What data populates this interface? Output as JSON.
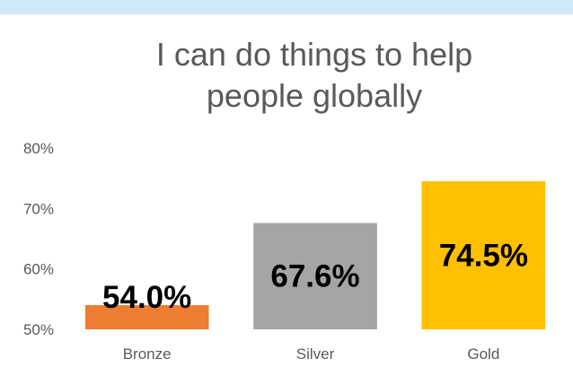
{
  "chart_data": {
    "type": "bar",
    "title_lines": [
      "I can do things to help",
      "people globally"
    ],
    "categories": [
      "Bronze",
      "Silver",
      "Gold"
    ],
    "values": [
      54.0,
      67.6,
      74.5
    ],
    "data_labels": [
      "54.0%",
      "67.6%",
      "74.5%"
    ],
    "colors": [
      "#ed7d31",
      "#a5a5a5",
      "#ffc000"
    ],
    "ylim": [
      50,
      80
    ],
    "yticks": [
      50,
      60,
      70,
      80
    ],
    "ytick_labels": [
      "50%",
      "60%",
      "70%",
      "80%"
    ],
    "xlabel": "",
    "ylabel": "",
    "grid": false,
    "legend": "none"
  }
}
